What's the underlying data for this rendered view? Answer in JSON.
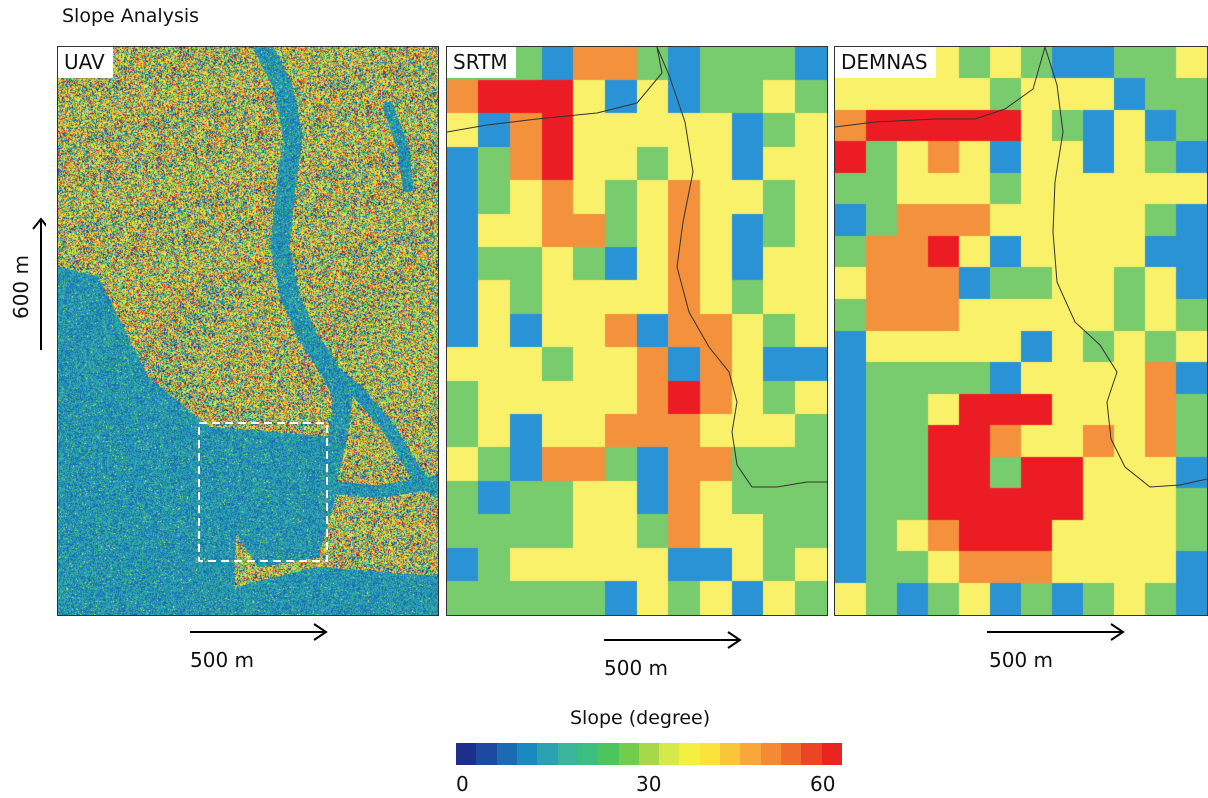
{
  "title": "Slope Analysis",
  "panels": [
    {
      "label": "UAV"
    },
    {
      "label": "SRTM"
    },
    {
      "label": "DEMNAS"
    }
  ],
  "scale": {
    "horizontal": "500 m",
    "vertical": "600 m"
  },
  "legend": {
    "title": "Slope (degree)",
    "ticks": [
      "0",
      "30",
      "60"
    ],
    "colors": [
      "#1c2f8c",
      "#1b4aa0",
      "#1a6bb2",
      "#1a89bd",
      "#2aa2b0",
      "#3ab49a",
      "#3bbf7e",
      "#4cc55e",
      "#73cd4c",
      "#a6d84a",
      "#d6e84a",
      "#f4ef43",
      "#fde13c",
      "#fbc53a",
      "#f8a838",
      "#f48a33",
      "#f06a2c",
      "#ec4526",
      "#e8251e"
    ]
  },
  "slope_classes": {
    "B": "#2a93d6",
    "G": "#79cc6d",
    "Y": "#f9f169",
    "O": "#f4913d",
    "R": "#ec1c24"
  },
  "grids": {
    "SRTM": [
      "GGGBOOGBGGGB",
      "ORRRYBYBGGYG",
      "YBORYYYYYBGY",
      "BGORYYGYYBYY",
      "BGYOYGYOYYGY",
      "BYYOOGYOYBGY",
      "BGGYGBYOYBYY",
      "BYGYYYYOYGYY",
      "BYBYYOBOOYGY",
      "YYYGYYOBOYBB",
      "GYYYYYOROYGY",
      "GYBYYOOOYYYG",
      "YGBOOGBOOGGG",
      "GBGGYYBOYGGG",
      "GGGGYYGOYYGG",
      "BGYYYYYBBYGY",
      "GGGGGBYGYBYG"
    ],
    "DEMNAS": [
      "YYYYGYGBBGGY",
      "YYYYYGYYYBGG",
      "ORRRRRYGBYBG",
      "RGYOYBYYBYGB",
      "GGYYYGYYYYYY",
      "BGOOOYYYYYGB",
      "GOORYBYYYYBB",
      "YOOOBGGYYGYB",
      "GOOOYYYYYGYG",
      "BYYYYYBYGYGY",
      "BGGGGBYYYYOB",
      "BGGYRRRYYYOG",
      "BGGRROYYOYOG",
      "BGGRRGRRYYYB",
      "BGGRRRRRYYYG",
      "BGYORRRYYYYG",
      "BGGYOOOYYYYB",
      "YGBGYBGBGYGB"
    ]
  }
}
